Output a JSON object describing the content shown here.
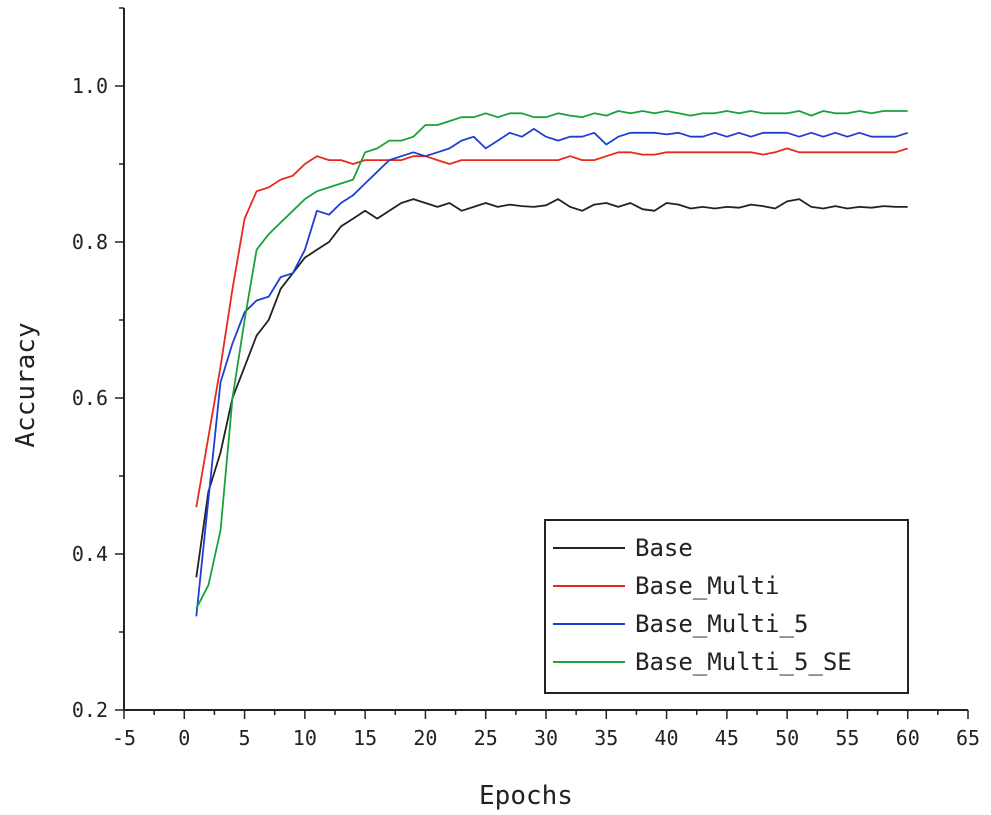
{
  "chart_data": {
    "type": "line",
    "xlabel": "Epochs",
    "ylabel": "Accuracy",
    "xlim": [
      -5,
      65
    ],
    "ylim": [
      0.2,
      1.1
    ],
    "xticks": [
      -5,
      0,
      5,
      10,
      15,
      20,
      25,
      30,
      35,
      40,
      45,
      50,
      55,
      60,
      65
    ],
    "yticks": [
      0.2,
      0.4,
      0.6,
      0.8,
      1.0
    ],
    "xtick_labels": [
      "-5",
      "0",
      "5",
      "10",
      "15",
      "20",
      "25",
      "30",
      "35",
      "40",
      "45",
      "50",
      "55",
      "60",
      "65"
    ],
    "ytick_labels": [
      "0.2",
      "0.4",
      "0.6",
      "0.8",
      "1.0"
    ],
    "grid": false,
    "legend_position": "bottom-right",
    "x": [
      1,
      2,
      3,
      4,
      5,
      6,
      7,
      8,
      9,
      10,
      11,
      12,
      13,
      14,
      15,
      16,
      17,
      18,
      19,
      20,
      21,
      22,
      23,
      24,
      25,
      26,
      27,
      28,
      29,
      30,
      31,
      32,
      33,
      34,
      35,
      36,
      37,
      38,
      39,
      40,
      41,
      42,
      43,
      44,
      45,
      46,
      47,
      48,
      49,
      50,
      51,
      52,
      53,
      54,
      55,
      56,
      57,
      58,
      59,
      60
    ],
    "series": [
      {
        "name": "Base",
        "color": "#222222",
        "values": [
          0.37,
          0.48,
          0.53,
          0.6,
          0.64,
          0.68,
          0.7,
          0.74,
          0.76,
          0.78,
          0.79,
          0.8,
          0.82,
          0.83,
          0.84,
          0.83,
          0.84,
          0.85,
          0.855,
          0.85,
          0.845,
          0.85,
          0.84,
          0.845,
          0.85,
          0.845,
          0.848,
          0.846,
          0.845,
          0.847,
          0.855,
          0.845,
          0.84,
          0.848,
          0.85,
          0.845,
          0.85,
          0.842,
          0.84,
          0.85,
          0.848,
          0.843,
          0.845,
          0.843,
          0.845,
          0.844,
          0.848,
          0.846,
          0.843,
          0.852,
          0.855,
          0.845,
          0.843,
          0.846,
          0.843,
          0.845,
          0.844,
          0.846,
          0.845,
          0.845
        ]
      },
      {
        "name": "Base_Multi",
        "color": "#e8291c",
        "values": [
          0.46,
          0.55,
          0.64,
          0.74,
          0.83,
          0.865,
          0.87,
          0.88,
          0.885,
          0.9,
          0.91,
          0.905,
          0.905,
          0.9,
          0.905,
          0.905,
          0.905,
          0.905,
          0.91,
          0.91,
          0.905,
          0.9,
          0.905,
          0.905,
          0.905,
          0.905,
          0.905,
          0.905,
          0.905,
          0.905,
          0.905,
          0.91,
          0.905,
          0.905,
          0.91,
          0.915,
          0.915,
          0.912,
          0.912,
          0.915,
          0.915,
          0.915,
          0.915,
          0.915,
          0.915,
          0.915,
          0.915,
          0.912,
          0.915,
          0.92,
          0.915,
          0.915,
          0.915,
          0.915,
          0.915,
          0.915,
          0.915,
          0.915,
          0.915,
          0.92
        ]
      },
      {
        "name": "Base_Multi_5",
        "color": "#1f3fd0",
        "values": [
          0.32,
          0.47,
          0.62,
          0.67,
          0.71,
          0.725,
          0.73,
          0.755,
          0.76,
          0.79,
          0.84,
          0.835,
          0.85,
          0.86,
          0.875,
          0.89,
          0.905,
          0.91,
          0.915,
          0.91,
          0.915,
          0.92,
          0.93,
          0.935,
          0.92,
          0.93,
          0.94,
          0.935,
          0.945,
          0.935,
          0.93,
          0.935,
          0.935,
          0.94,
          0.925,
          0.935,
          0.94,
          0.94,
          0.94,
          0.938,
          0.94,
          0.935,
          0.935,
          0.94,
          0.935,
          0.94,
          0.935,
          0.94,
          0.94,
          0.94,
          0.935,
          0.94,
          0.935,
          0.94,
          0.935,
          0.94,
          0.935,
          0.935,
          0.935,
          0.94
        ]
      },
      {
        "name": "Base_Multi_5_SE",
        "color": "#18a33a",
        "values": [
          0.33,
          0.36,
          0.43,
          0.6,
          0.7,
          0.79,
          0.81,
          0.825,
          0.84,
          0.855,
          0.865,
          0.87,
          0.875,
          0.88,
          0.915,
          0.92,
          0.93,
          0.93,
          0.935,
          0.95,
          0.95,
          0.955,
          0.96,
          0.96,
          0.965,
          0.96,
          0.965,
          0.965,
          0.96,
          0.96,
          0.965,
          0.962,
          0.96,
          0.965,
          0.962,
          0.968,
          0.965,
          0.968,
          0.965,
          0.968,
          0.965,
          0.962,
          0.965,
          0.965,
          0.968,
          0.965,
          0.968,
          0.965,
          0.965,
          0.965,
          0.968,
          0.962,
          0.968,
          0.965,
          0.965,
          0.968,
          0.965,
          0.968,
          0.968,
          0.968
        ]
      }
    ]
  }
}
